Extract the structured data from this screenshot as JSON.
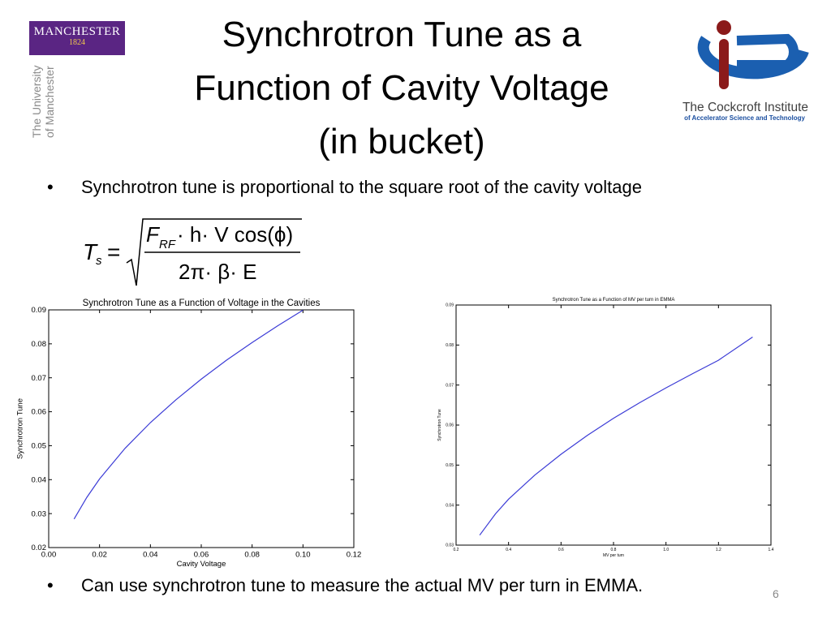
{
  "logos": {
    "manchester_word": "MANCHESTER",
    "manchester_year": "1824",
    "university_line1": "The University",
    "university_line2": "of Manchester",
    "cockcroft_name": "The Cockcroft Institute",
    "cockcroft_sub": "of Accelerator Science and Technology"
  },
  "title": {
    "line1": "Synchrotron Tune as a",
    "line2": "Function of Cavity Voltage",
    "line3": "(in bucket)"
  },
  "bullets": [
    {
      "symbol": "•",
      "text": "Synchrotron tune is proportional to the square root of the cavity voltage"
    },
    {
      "symbol": "•",
      "text": "Can use synchrotron tune to measure the actual MV per turn in EMMA."
    }
  ],
  "formula": {
    "lhs": "T",
    "lhs_sub": "s",
    "eq": "=",
    "num_F": "F",
    "num_F_sub": "RF",
    "num_rest": "· h· V cos(ϕ)",
    "den": "2π· β· E"
  },
  "slide_number": "6",
  "colors": {
    "line": "#3b3bd6",
    "manchester_purple": "#5a2583",
    "cockcroft_blue": "#1b5fb0",
    "cockcroft_red": "#8b1a1a"
  },
  "chart_data": [
    {
      "type": "line",
      "title": "Synchrotron Tune as a Function of Voltage in the Cavities",
      "xlabel": "Cavity Voltage",
      "ylabel": "Synchrotron Tune",
      "xlim": [
        0.0,
        0.12
      ],
      "ylim": [
        0.02,
        0.09
      ],
      "xticks": [
        "0.00",
        "0.02",
        "0.04",
        "0.06",
        "0.08",
        "0.10",
        "0.12"
      ],
      "yticks": [
        "0.02",
        "0.03",
        "0.04",
        "0.05",
        "0.06",
        "0.07",
        "0.08",
        "0.09"
      ],
      "series": [
        {
          "x": [
            0.01,
            0.015,
            0.02,
            0.03,
            0.04,
            0.05,
            0.06,
            0.07,
            0.08,
            0.09,
            0.1
          ],
          "y": [
            0.0284,
            0.0348,
            0.0402,
            0.0492,
            0.0568,
            0.0635,
            0.0696,
            0.0752,
            0.0804,
            0.0853,
            0.0899
          ]
        }
      ]
    },
    {
      "type": "line",
      "title": "Synchrotron Tune as a Function of MV per turn in EMMA",
      "xlabel": "MV per turn",
      "ylabel": "Synchrotron Tune",
      "xlim": [
        0.2,
        1.4
      ],
      "ylim": [
        0.03,
        0.09
      ],
      "xticks": [
        "0.2",
        "0.4",
        "0.6",
        "0.8",
        "1.0",
        "1.2",
        "1.4"
      ],
      "yticks": [
        "0.03",
        "0.04",
        "0.05",
        "0.06",
        "0.07",
        "0.08",
        "0.09"
      ],
      "series": [
        {
          "x": [
            0.29,
            0.35,
            0.4,
            0.5,
            0.6,
            0.7,
            0.8,
            0.9,
            1.0,
            1.1,
            1.2,
            1.33
          ],
          "y": [
            0.0325,
            0.0378,
            0.0415,
            0.0475,
            0.0527,
            0.0574,
            0.0617,
            0.0656,
            0.0693,
            0.0728,
            0.0762,
            0.082
          ]
        }
      ]
    }
  ]
}
